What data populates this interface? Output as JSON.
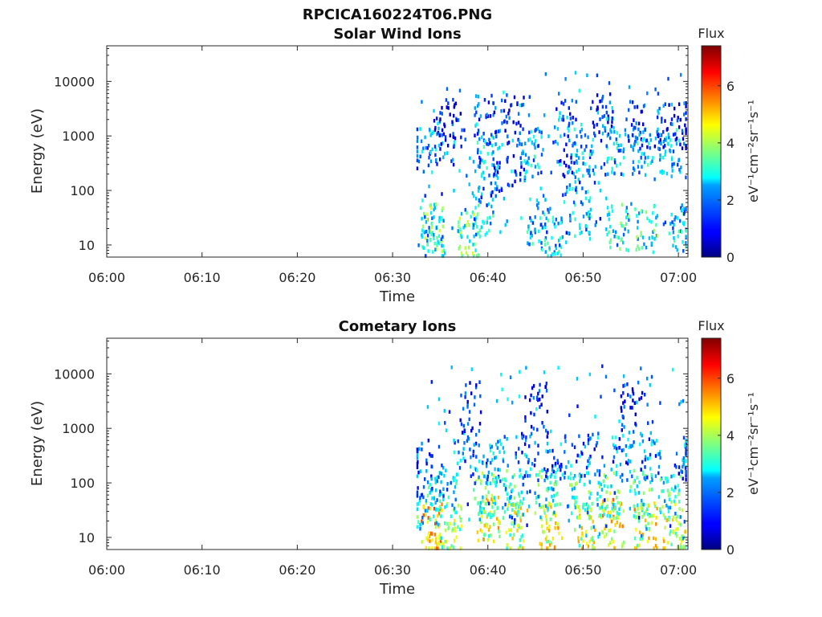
{
  "figure_title": "RPCICA160224T06.PNG",
  "chart_data": [
    {
      "type": "heatmap",
      "title": "Solar Wind Ions",
      "xlabel": "Time",
      "ylabel": "Energy (eV)",
      "x_ticks": [
        "06:00",
        "06:10",
        "06:20",
        "06:30",
        "06:40",
        "06:50",
        "07:00"
      ],
      "x_range_minutes": [
        0,
        61
      ],
      "y_ticks": [
        "10",
        "100",
        "1000",
        "10000"
      ],
      "y_scale": "log",
      "y_range": [
        6,
        45000
      ],
      "colorbar": {
        "label": "Flux",
        "unit": "eV⁻¹cm⁻²sr⁻¹s⁻¹",
        "ticks": [
          "0",
          "2",
          "4",
          "6"
        ],
        "range": [
          0,
          7.4
        ]
      },
      "data_start_minute": 32.5,
      "clusters": [
        {
          "t": 34.0,
          "e": 20,
          "v": 4.6
        },
        {
          "t": 34.2,
          "e": 12,
          "v": 3.4
        },
        {
          "t": 33.3,
          "e": 500,
          "v": 3.0
        },
        {
          "t": 35.2,
          "e": 800,
          "v": 2.5
        },
        {
          "t": 36.0,
          "e": 2500,
          "v": 2.0
        },
        {
          "t": 38.0,
          "e": 15,
          "v": 4.5
        },
        {
          "t": 39.5,
          "e": 40,
          "v": 3.5
        },
        {
          "t": 40.0,
          "e": 500,
          "v": 3.5
        },
        {
          "t": 40.2,
          "e": 150,
          "v": 3.0
        },
        {
          "t": 39.6,
          "e": 2000,
          "v": 2.5
        },
        {
          "t": 42.5,
          "e": 2200,
          "v": 2.0
        },
        {
          "t": 43.0,
          "e": 300,
          "v": 3.0
        },
        {
          "t": 44.5,
          "e": 500,
          "v": 3.5
        },
        {
          "t": 45.0,
          "e": 25,
          "v": 3.5
        },
        {
          "t": 46.5,
          "e": 15,
          "v": 3.5
        },
        {
          "t": 48.0,
          "e": 1600,
          "v": 3.0
        },
        {
          "t": 48.5,
          "e": 200,
          "v": 2.5
        },
        {
          "t": 49.5,
          "e": 40,
          "v": 3.5
        },
        {
          "t": 50.0,
          "e": 500,
          "v": 3.5
        },
        {
          "t": 52.0,
          "e": 2000,
          "v": 2.5
        },
        {
          "t": 53.0,
          "e": 500,
          "v": 3.5
        },
        {
          "t": 53.5,
          "e": 20,
          "v": 4.0
        },
        {
          "t": 55.5,
          "e": 1500,
          "v": 2.5
        },
        {
          "t": 56.0,
          "e": 500,
          "v": 3.5
        },
        {
          "t": 56.5,
          "e": 20,
          "v": 4.0
        },
        {
          "t": 58.5,
          "e": 1500,
          "v": 2.5
        },
        {
          "t": 59.0,
          "e": 500,
          "v": 3.5
        },
        {
          "t": 60.0,
          "e": 20,
          "v": 3.5
        },
        {
          "t": 60.5,
          "e": 1500,
          "v": 2.0
        }
      ]
    },
    {
      "type": "heatmap",
      "title": "Cometary Ions",
      "xlabel": "Time",
      "ylabel": "Energy (eV)",
      "x_ticks": [
        "06:00",
        "06:10",
        "06:20",
        "06:30",
        "06:40",
        "06:50",
        "07:00"
      ],
      "x_range_minutes": [
        0,
        61
      ],
      "y_ticks": [
        "10",
        "100",
        "1000",
        "10000"
      ],
      "y_scale": "log",
      "y_range": [
        6,
        45000
      ],
      "colorbar": {
        "label": "Flux",
        "unit": "eV⁻¹cm⁻²sr⁻¹s⁻¹",
        "ticks": [
          "0",
          "2",
          "4",
          "6"
        ],
        "range": [
          0,
          7.4
        ]
      },
      "data_start_minute": 32.5,
      "clusters": [
        {
          "t": 34.0,
          "e": 15,
          "v": 6.2
        },
        {
          "t": 33.5,
          "e": 40,
          "v": 4.0
        },
        {
          "t": 33.0,
          "e": 150,
          "v": 3.0
        },
        {
          "t": 36.0,
          "e": 15,
          "v": 4.8
        },
        {
          "t": 35.5,
          "e": 80,
          "v": 3.5
        },
        {
          "t": 37.5,
          "e": 300,
          "v": 3.0
        },
        {
          "t": 40.0,
          "e": 20,
          "v": 5.6
        },
        {
          "t": 39.5,
          "e": 60,
          "v": 4.5
        },
        {
          "t": 40.5,
          "e": 250,
          "v": 3.2
        },
        {
          "t": 43.0,
          "e": 15,
          "v": 5.2
        },
        {
          "t": 42.5,
          "e": 60,
          "v": 4.2
        },
        {
          "t": 44.0,
          "e": 300,
          "v": 3.0
        },
        {
          "t": 46.5,
          "e": 15,
          "v": 5.6
        },
        {
          "t": 46.0,
          "e": 60,
          "v": 4.3
        },
        {
          "t": 47.0,
          "e": 300,
          "v": 3.0
        },
        {
          "t": 50.0,
          "e": 15,
          "v": 5.4
        },
        {
          "t": 49.5,
          "e": 60,
          "v": 4.2
        },
        {
          "t": 50.5,
          "e": 300,
          "v": 3.0
        },
        {
          "t": 53.0,
          "e": 18,
          "v": 6.0
        },
        {
          "t": 52.5,
          "e": 60,
          "v": 4.5
        },
        {
          "t": 54.0,
          "e": 300,
          "v": 3.2
        },
        {
          "t": 56.5,
          "e": 15,
          "v": 5.6
        },
        {
          "t": 56.0,
          "e": 60,
          "v": 4.3
        },
        {
          "t": 57.0,
          "e": 300,
          "v": 3.0
        },
        {
          "t": 59.5,
          "e": 15,
          "v": 5.4
        },
        {
          "t": 59.0,
          "e": 60,
          "v": 4.2
        },
        {
          "t": 60.5,
          "e": 300,
          "v": 3.0
        },
        {
          "t": 38.0,
          "e": 2500,
          "v": 2.0
        },
        {
          "t": 45.0,
          "e": 2500,
          "v": 2.0
        },
        {
          "t": 55.0,
          "e": 2500,
          "v": 2.0
        }
      ]
    }
  ]
}
